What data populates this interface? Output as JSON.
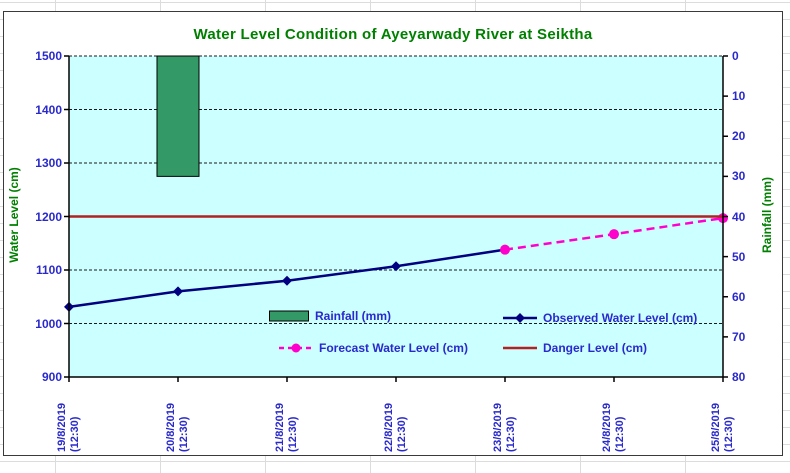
{
  "title": "Water Level Condition of Ayeyarwady River at Seiktha",
  "colors": {
    "plot_background": "#CCFFFF",
    "text_blue": "#2929CC",
    "title_green": "#008000",
    "gridline": "#1a1a1a",
    "axis_line": "#000000"
  },
  "chart_data": {
    "type": "line+bar",
    "title": "Water Level Condition of Ayeyarwady River at Seiktha",
    "categories": [
      "19/8/2019",
      "20/8/2019",
      "21/8/2019",
      "22/8/2019",
      "23/8/2019",
      "24/8/2019",
      "25/8/2019"
    ],
    "category_time": "(12:30)",
    "left_axis": {
      "label": "Water Level (cm)",
      "min": 900,
      "max": 1500,
      "tick_step": 100
    },
    "right_axis": {
      "label": "Rainfall (mm)",
      "min": 0,
      "max": 80,
      "tick_step": 10,
      "inverted_downward": true
    },
    "grid": "dashed horizontal at each left-axis tick",
    "legend_position": "inside plot, lower center, two columns",
    "series": [
      {
        "name": "Rainfall (mm)",
        "type": "bar",
        "axis": "right",
        "color": "#339966",
        "values": [
          null,
          30,
          null,
          null,
          null,
          null,
          null
        ]
      },
      {
        "name": "Observed Water Level (cm)",
        "type": "line",
        "axis": "left",
        "color": "#000080",
        "marker": "diamond",
        "values": [
          1031,
          1060,
          1080,
          1107,
          1138,
          null,
          null
        ]
      },
      {
        "name": "Forecast Water Level (cm)",
        "type": "line",
        "axis": "left",
        "color": "#FF00CC",
        "marker": "circle",
        "dashed": true,
        "values": [
          null,
          null,
          null,
          null,
          1138,
          1167,
          1197
        ]
      },
      {
        "name": "Danger Level (cm)",
        "type": "hline",
        "axis": "left",
        "color": "#B22222",
        "value": 1200
      }
    ]
  }
}
